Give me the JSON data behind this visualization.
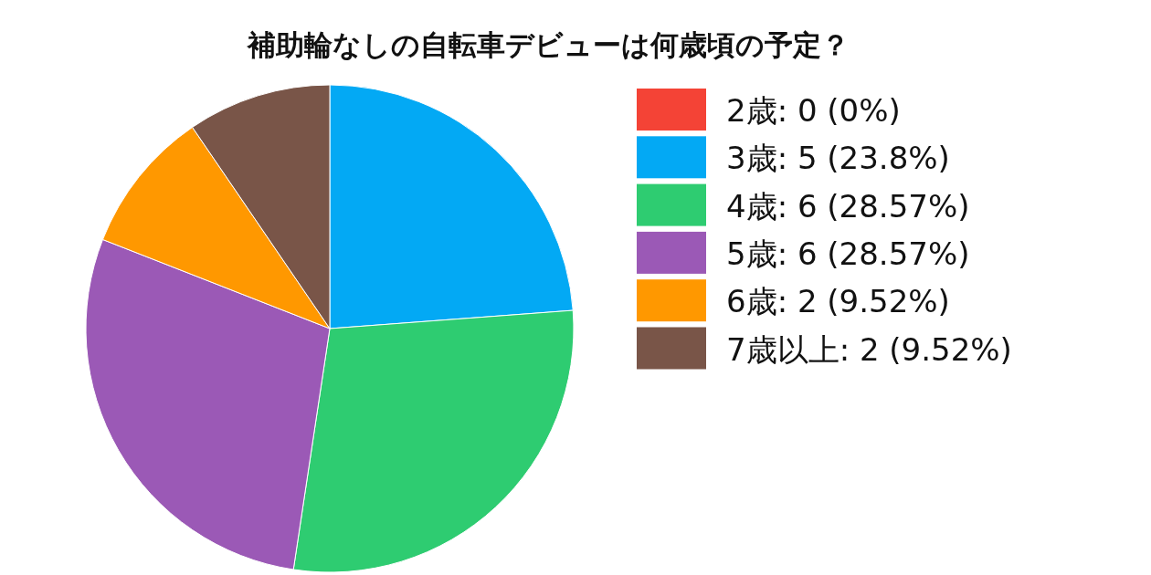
{
  "chart_data": {
    "type": "pie",
    "title": "補助輪なしの自転車デビューは何歳頃の予定？",
    "categories": [
      "2歳",
      "3歳",
      "4歳",
      "5歳",
      "6歳",
      "7歳以上"
    ],
    "values": [
      0,
      5,
      6,
      6,
      2,
      2
    ],
    "value_labels": [
      "0 (0%)",
      "5 (23.8%)",
      "6 (28.57%)",
      "6 (28.57%)",
      "2 (9.52%)",
      "2 (9.52%)"
    ],
    "colors": [
      "#f44336",
      "#03a9f4",
      "#2ecc71",
      "#9b59b6",
      "#ff9800",
      "#795548"
    ],
    "legend": "right"
  }
}
